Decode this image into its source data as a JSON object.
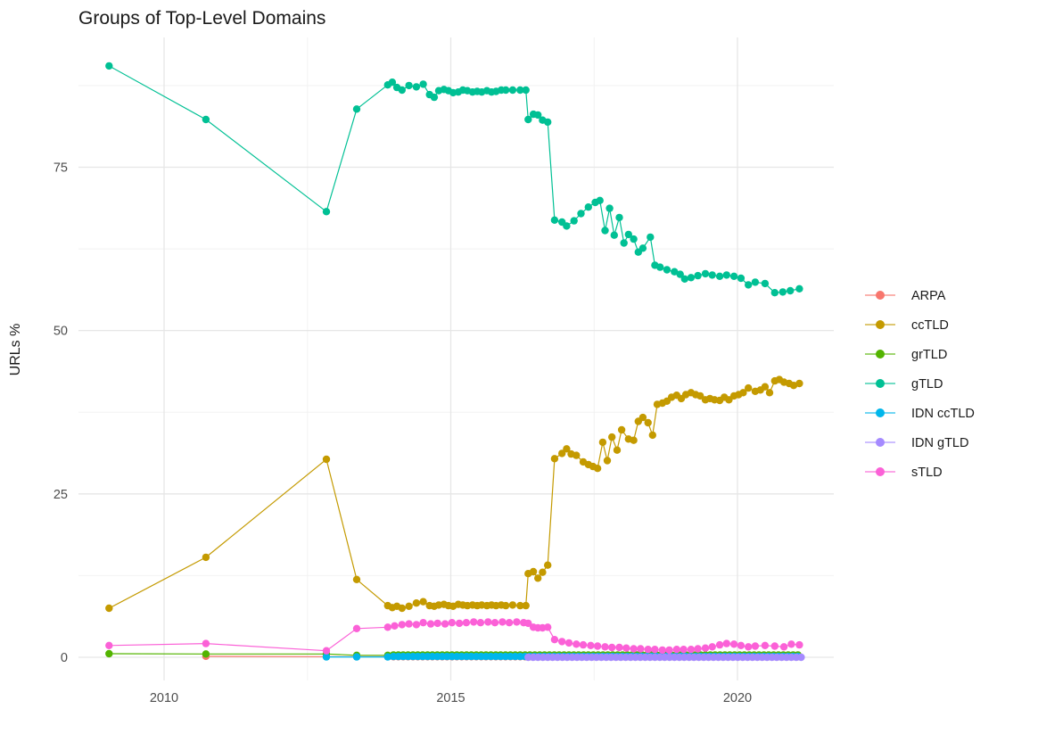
{
  "colors": {
    "background": "#FFFFFF",
    "grid_major": "#E6E6E6",
    "grid_minor": "#F2F2F2",
    "tick_text": "#4D4D4D",
    "title_text": "#1A1A1A"
  },
  "chart_data": {
    "type": "line",
    "title": "Groups of Top-Level Domains",
    "xlabel": "",
    "ylabel": "URLs %",
    "marker": "point+line",
    "grid": "major+minor",
    "legend_position": "right",
    "x_range": [
      2008.5,
      2021.7
    ],
    "y_range": [
      -3.5,
      94.9
    ],
    "x_ticks": {
      "values": [
        2010,
        2015,
        2020
      ],
      "labels": [
        "2010",
        "2015",
        "2020"
      ]
    },
    "x_minor": [
      2012.5,
      2017.5
    ],
    "y_ticks": {
      "values": [
        0,
        25,
        50,
        75
      ],
      "labels": [
        "0",
        "25",
        "50",
        "75"
      ]
    },
    "y_minor": [
      12.5,
      37.5,
      62.5,
      87.5
    ],
    "series": [
      {
        "name": "ARPA",
        "color": "#F8766D",
        "points": [
          [
            2010.73,
            0.15
          ],
          [
            2012.83,
            0.1
          ],
          [
            2013.36,
            0.08
          ],
          [
            2013.9,
            0.08
          ]
        ],
        "fill_segments": [
          {
            "from": 2014.0,
            "to": 2021.08,
            "step": 0.085,
            "value": 0.08
          }
        ]
      },
      {
        "name": "ccTLD",
        "color": "#C49A00",
        "points": [
          [
            2009.04,
            7.5
          ],
          [
            2010.73,
            15.3
          ],
          [
            2012.83,
            30.3
          ],
          [
            2013.36,
            11.9
          ],
          [
            2013.9,
            7.9
          ],
          [
            2013.98,
            7.6
          ],
          [
            2014.06,
            7.8
          ],
          [
            2014.15,
            7.5
          ],
          [
            2014.27,
            7.8
          ],
          [
            2014.4,
            8.3
          ],
          [
            2014.52,
            8.5
          ],
          [
            2014.63,
            7.9
          ],
          [
            2014.71,
            7.8
          ],
          [
            2014.79,
            8.0
          ],
          [
            2014.88,
            8.1
          ],
          [
            2014.96,
            7.9
          ],
          [
            2015.04,
            7.8
          ],
          [
            2015.13,
            8.1
          ],
          [
            2015.21,
            8.0
          ],
          [
            2015.29,
            7.9
          ],
          [
            2015.38,
            8.0
          ],
          [
            2015.46,
            7.9
          ],
          [
            2015.54,
            8.0
          ],
          [
            2015.63,
            7.9
          ],
          [
            2015.71,
            8.0
          ],
          [
            2015.79,
            7.9
          ],
          [
            2015.88,
            8.0
          ],
          [
            2015.96,
            7.9
          ],
          [
            2016.08,
            8.0
          ],
          [
            2016.21,
            7.9
          ],
          [
            2016.31,
            7.9
          ],
          [
            2016.35,
            12.8
          ],
          [
            2016.44,
            13.1
          ],
          [
            2016.52,
            12.1
          ],
          [
            2016.6,
            13.0
          ],
          [
            2016.69,
            14.1
          ],
          [
            2016.81,
            30.4
          ],
          [
            2016.94,
            31.2
          ],
          [
            2017.02,
            31.9
          ],
          [
            2017.1,
            31.1
          ],
          [
            2017.19,
            30.9
          ],
          [
            2017.31,
            29.9
          ],
          [
            2017.4,
            29.5
          ],
          [
            2017.48,
            29.2
          ],
          [
            2017.56,
            28.9
          ],
          [
            2017.65,
            32.9
          ],
          [
            2017.73,
            30.1
          ],
          [
            2017.81,
            33.7
          ],
          [
            2017.9,
            31.7
          ],
          [
            2017.98,
            34.8
          ],
          [
            2018.1,
            33.4
          ],
          [
            2018.19,
            33.2
          ],
          [
            2018.27,
            36.1
          ],
          [
            2018.35,
            36.7
          ],
          [
            2018.44,
            35.9
          ],
          [
            2018.52,
            34.0
          ],
          [
            2018.6,
            38.7
          ],
          [
            2018.69,
            38.9
          ],
          [
            2018.77,
            39.2
          ],
          [
            2018.85,
            39.8
          ],
          [
            2018.94,
            40.1
          ],
          [
            2019.02,
            39.6
          ],
          [
            2019.1,
            40.2
          ],
          [
            2019.19,
            40.5
          ],
          [
            2019.27,
            40.2
          ],
          [
            2019.35,
            40.0
          ],
          [
            2019.44,
            39.4
          ],
          [
            2019.52,
            39.6
          ],
          [
            2019.6,
            39.4
          ],
          [
            2019.69,
            39.3
          ],
          [
            2019.77,
            39.8
          ],
          [
            2019.85,
            39.4
          ],
          [
            2019.94,
            40.0
          ],
          [
            2020.02,
            40.2
          ],
          [
            2020.1,
            40.5
          ],
          [
            2020.19,
            41.2
          ],
          [
            2020.31,
            40.7
          ],
          [
            2020.4,
            40.9
          ],
          [
            2020.48,
            41.4
          ],
          [
            2020.56,
            40.5
          ],
          [
            2020.65,
            42.3
          ],
          [
            2020.73,
            42.5
          ],
          [
            2020.81,
            42.1
          ],
          [
            2020.9,
            41.9
          ],
          [
            2020.98,
            41.6
          ],
          [
            2021.08,
            41.9
          ]
        ]
      },
      {
        "name": "grTLD",
        "color": "#53B400",
        "points": [
          [
            2009.04,
            0.55
          ],
          [
            2010.73,
            0.5
          ],
          [
            2012.83,
            0.5
          ],
          [
            2013.36,
            0.3
          ],
          [
            2013.9,
            0.3
          ]
        ],
        "fill_segments": [
          {
            "from": 2014.0,
            "to": 2021.08,
            "step": 0.085,
            "value": 0.35
          }
        ]
      },
      {
        "name": "gTLD",
        "color": "#00C094",
        "points": [
          [
            2009.04,
            90.5
          ],
          [
            2010.73,
            82.3
          ],
          [
            2012.83,
            68.2
          ],
          [
            2013.36,
            83.9
          ],
          [
            2013.9,
            87.6
          ],
          [
            2013.98,
            88.0
          ],
          [
            2014.06,
            87.2
          ],
          [
            2014.15,
            86.8
          ],
          [
            2014.27,
            87.5
          ],
          [
            2014.4,
            87.3
          ],
          [
            2014.52,
            87.7
          ],
          [
            2014.63,
            86.1
          ],
          [
            2014.71,
            85.7
          ],
          [
            2014.79,
            86.7
          ],
          [
            2014.88,
            86.9
          ],
          [
            2014.96,
            86.7
          ],
          [
            2015.04,
            86.4
          ],
          [
            2015.13,
            86.5
          ],
          [
            2015.21,
            86.8
          ],
          [
            2015.29,
            86.7
          ],
          [
            2015.38,
            86.5
          ],
          [
            2015.46,
            86.6
          ],
          [
            2015.54,
            86.5
          ],
          [
            2015.63,
            86.7
          ],
          [
            2015.71,
            86.5
          ],
          [
            2015.79,
            86.6
          ],
          [
            2015.88,
            86.8
          ],
          [
            2015.96,
            86.8
          ],
          [
            2016.08,
            86.8
          ],
          [
            2016.21,
            86.8
          ],
          [
            2016.31,
            86.8
          ],
          [
            2016.35,
            82.3
          ],
          [
            2016.44,
            83.1
          ],
          [
            2016.52,
            83.0
          ],
          [
            2016.6,
            82.2
          ],
          [
            2016.69,
            81.9
          ],
          [
            2016.81,
            66.9
          ],
          [
            2016.94,
            66.6
          ],
          [
            2017.02,
            66.0
          ],
          [
            2017.15,
            66.8
          ],
          [
            2017.27,
            67.9
          ],
          [
            2017.4,
            68.9
          ],
          [
            2017.52,
            69.6
          ],
          [
            2017.6,
            69.9
          ],
          [
            2017.69,
            65.3
          ],
          [
            2017.77,
            68.7
          ],
          [
            2017.85,
            64.6
          ],
          [
            2017.94,
            67.3
          ],
          [
            2018.02,
            63.4
          ],
          [
            2018.1,
            64.7
          ],
          [
            2018.19,
            64.0
          ],
          [
            2018.27,
            62.0
          ],
          [
            2018.35,
            62.6
          ],
          [
            2018.48,
            64.3
          ],
          [
            2018.56,
            60.0
          ],
          [
            2018.65,
            59.7
          ],
          [
            2018.77,
            59.3
          ],
          [
            2018.9,
            59.0
          ],
          [
            2019.0,
            58.6
          ],
          [
            2019.08,
            57.9
          ],
          [
            2019.19,
            58.1
          ],
          [
            2019.31,
            58.4
          ],
          [
            2019.44,
            58.7
          ],
          [
            2019.56,
            58.5
          ],
          [
            2019.69,
            58.3
          ],
          [
            2019.81,
            58.5
          ],
          [
            2019.94,
            58.3
          ],
          [
            2020.06,
            58.0
          ],
          [
            2020.19,
            57.0
          ],
          [
            2020.31,
            57.4
          ],
          [
            2020.48,
            57.2
          ],
          [
            2020.65,
            55.8
          ],
          [
            2020.79,
            55.9
          ],
          [
            2020.92,
            56.1
          ],
          [
            2021.08,
            56.4
          ]
        ]
      },
      {
        "name": "IDN ccTLD",
        "color": "#00B6EB",
        "points": [
          [
            2012.83,
            0.05
          ],
          [
            2013.36,
            0.05
          ],
          [
            2013.9,
            0.05
          ]
        ],
        "fill_segments": [
          {
            "from": 2014.0,
            "to": 2021.08,
            "step": 0.085,
            "value": 0.12
          }
        ]
      },
      {
        "name": "IDN gTLD",
        "color": "#A58AFF",
        "points": [],
        "fill_segments": [
          {
            "from": 2016.35,
            "to": 2021.08,
            "step": 0.085,
            "value": 0.0
          }
        ]
      },
      {
        "name": "sTLD",
        "color": "#FB61D7",
        "points": [
          [
            2009.04,
            1.8
          ],
          [
            2010.73,
            2.1
          ],
          [
            2012.83,
            1.0
          ],
          [
            2013.36,
            4.4
          ],
          [
            2013.9,
            4.6
          ],
          [
            2014.02,
            4.8
          ],
          [
            2014.15,
            5.0
          ],
          [
            2014.27,
            5.1
          ],
          [
            2014.4,
            5.0
          ],
          [
            2014.52,
            5.3
          ],
          [
            2014.65,
            5.1
          ],
          [
            2014.77,
            5.2
          ],
          [
            2014.9,
            5.1
          ],
          [
            2015.02,
            5.3
          ],
          [
            2015.15,
            5.2
          ],
          [
            2015.27,
            5.3
          ],
          [
            2015.4,
            5.4
          ],
          [
            2015.52,
            5.3
          ],
          [
            2015.65,
            5.4
          ],
          [
            2015.77,
            5.3
          ],
          [
            2015.9,
            5.4
          ],
          [
            2016.02,
            5.3
          ],
          [
            2016.15,
            5.4
          ],
          [
            2016.27,
            5.3
          ],
          [
            2016.35,
            5.2
          ],
          [
            2016.44,
            4.6
          ],
          [
            2016.52,
            4.5
          ],
          [
            2016.6,
            4.5
          ],
          [
            2016.69,
            4.6
          ],
          [
            2016.81,
            2.7
          ],
          [
            2016.94,
            2.4
          ],
          [
            2017.06,
            2.2
          ],
          [
            2017.19,
            2.0
          ],
          [
            2017.31,
            1.9
          ],
          [
            2017.44,
            1.8
          ],
          [
            2017.56,
            1.7
          ],
          [
            2017.69,
            1.6
          ],
          [
            2017.81,
            1.5
          ],
          [
            2017.94,
            1.5
          ],
          [
            2018.06,
            1.4
          ],
          [
            2018.19,
            1.3
          ],
          [
            2018.31,
            1.3
          ],
          [
            2018.44,
            1.2
          ],
          [
            2018.56,
            1.2
          ],
          [
            2018.69,
            1.1
          ],
          [
            2018.81,
            1.1
          ],
          [
            2018.94,
            1.2
          ],
          [
            2019.06,
            1.2
          ],
          [
            2019.19,
            1.2
          ],
          [
            2019.31,
            1.3
          ],
          [
            2019.44,
            1.4
          ],
          [
            2019.56,
            1.6
          ],
          [
            2019.69,
            1.9
          ],
          [
            2019.81,
            2.1
          ],
          [
            2019.94,
            2.0
          ],
          [
            2020.06,
            1.8
          ],
          [
            2020.19,
            1.6
          ],
          [
            2020.31,
            1.7
          ],
          [
            2020.48,
            1.8
          ],
          [
            2020.65,
            1.7
          ],
          [
            2020.81,
            1.6
          ],
          [
            2020.94,
            2.0
          ],
          [
            2021.08,
            1.9
          ]
        ]
      }
    ]
  }
}
